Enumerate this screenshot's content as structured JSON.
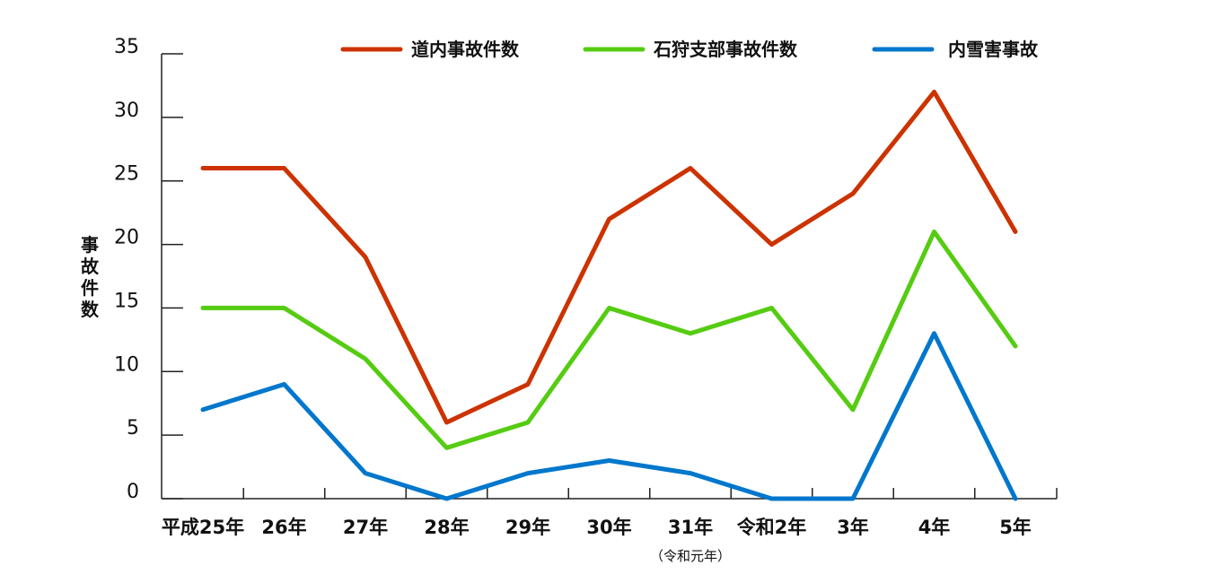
{
  "chart_data": {
    "type": "line",
    "title": "",
    "xlabel": "",
    "ylabel": "事故件数",
    "ylim": [
      0,
      35
    ],
    "yticks": [
      0,
      5,
      10,
      15,
      20,
      25,
      30,
      35
    ],
    "categories": [
      "平成25年",
      "26年",
      "27年",
      "28年",
      "29年",
      "30年",
      "31年",
      "令和2年",
      "3年",
      "4年",
      "5年"
    ],
    "category_notes": [
      "",
      "",
      "",
      "",
      "",
      "",
      "（令和元年）",
      "",
      "",
      "",
      ""
    ],
    "legend_position": "top",
    "grid": false,
    "series": [
      {
        "name": "道内事故件数",
        "color": "#cc3300",
        "values": [
          26,
          26,
          19,
          6,
          9,
          22,
          26,
          20,
          24,
          32,
          21
        ]
      },
      {
        "name": "石狩支部事故件数",
        "color": "#55cc11",
        "values": [
          15,
          15,
          11,
          4,
          6,
          15,
          13,
          15,
          7,
          21,
          12
        ]
      },
      {
        "name": "内雪害事故",
        "color": "#0077cc",
        "values": [
          7,
          9,
          2,
          0,
          2,
          3,
          2,
          0,
          0,
          13,
          0
        ]
      }
    ]
  }
}
